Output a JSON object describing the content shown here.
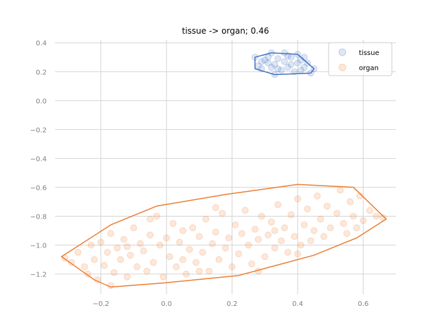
{
  "chart_data": {
    "type": "scatter",
    "title": "tissue -> organ; 0.46",
    "xlabel": "",
    "ylabel": "",
    "xlim": [
      -0.34,
      0.7
    ],
    "ylim": [
      -1.34,
      0.42
    ],
    "xticks": [
      -0.2,
      0.0,
      0.2,
      0.4,
      0.6
    ],
    "yticks": [
      0.4,
      0.2,
      0.0,
      -0.2,
      -0.4,
      -0.6,
      -0.8,
      -1.0,
      -1.2
    ],
    "xtick_labels": [
      "−0.2",
      "0.0",
      "0.2",
      "0.4",
      "0.6"
    ],
    "ytick_labels": [
      "0.4",
      "0.2",
      "0.0",
      "−0.2",
      "−0.4",
      "−0.6",
      "−0.8",
      "−1.0",
      "−1.2"
    ],
    "grid": true,
    "legend_position": "top-right",
    "series": [
      {
        "name": "tissue",
        "color": "#4472c4",
        "hull": [
          [
            0.27,
            0.3
          ],
          [
            0.32,
            0.33
          ],
          [
            0.4,
            0.32
          ],
          [
            0.45,
            0.22
          ],
          [
            0.44,
            0.19
          ],
          [
            0.33,
            0.18
          ],
          [
            0.27,
            0.22
          ]
        ],
        "points": [
          [
            0.27,
            0.3
          ],
          [
            0.28,
            0.24
          ],
          [
            0.29,
            0.22
          ],
          [
            0.3,
            0.28
          ],
          [
            0.31,
            0.26
          ],
          [
            0.32,
            0.33
          ],
          [
            0.32,
            0.23
          ],
          [
            0.33,
            0.18
          ],
          [
            0.33,
            0.25
          ],
          [
            0.34,
            0.29
          ],
          [
            0.35,
            0.21
          ],
          [
            0.36,
            0.27
          ],
          [
            0.36,
            0.33
          ],
          [
            0.37,
            0.23
          ],
          [
            0.38,
            0.3
          ],
          [
            0.38,
            0.25
          ],
          [
            0.39,
            0.2
          ],
          [
            0.4,
            0.26
          ],
          [
            0.4,
            0.32
          ],
          [
            0.41,
            0.28
          ],
          [
            0.42,
            0.23
          ],
          [
            0.42,
            0.3
          ],
          [
            0.43,
            0.26
          ],
          [
            0.44,
            0.19
          ],
          [
            0.45,
            0.22
          ],
          [
            0.31,
            0.3
          ],
          [
            0.34,
            0.22
          ],
          [
            0.37,
            0.31
          ],
          [
            0.41,
            0.21
          ],
          [
            0.29,
            0.27
          ]
        ]
      },
      {
        "name": "organ",
        "color": "#ed7d31",
        "hull": [
          [
            -0.32,
            -1.08
          ],
          [
            -0.22,
            -1.24
          ],
          [
            -0.17,
            -1.29
          ],
          [
            0.0,
            -1.26
          ],
          [
            0.22,
            -1.21
          ],
          [
            0.45,
            -1.07
          ],
          [
            0.58,
            -0.95
          ],
          [
            0.67,
            -0.82
          ],
          [
            0.57,
            -0.6
          ],
          [
            0.4,
            -0.58
          ],
          [
            0.18,
            -0.65
          ],
          [
            -0.03,
            -0.73
          ],
          [
            -0.17,
            -0.86
          ]
        ],
        "points": [
          [
            -0.31,
            -1.09
          ],
          [
            -0.29,
            -1.12
          ],
          [
            -0.27,
            -1.05
          ],
          [
            -0.25,
            -1.15
          ],
          [
            -0.24,
            -1.2
          ],
          [
            -0.23,
            -1.0
          ],
          [
            -0.22,
            -1.1
          ],
          [
            -0.21,
            -1.24
          ],
          [
            -0.2,
            -0.98
          ],
          [
            -0.19,
            -1.14
          ],
          [
            -0.18,
            -1.05
          ],
          [
            -0.17,
            -1.28
          ],
          [
            -0.17,
            -0.92
          ],
          [
            -0.16,
            -1.19
          ],
          [
            -0.15,
            -1.02
          ],
          [
            -0.14,
            -1.1
          ],
          [
            -0.13,
            -0.96
          ],
          [
            -0.12,
            -1.22
          ],
          [
            -0.11,
            -1.07
          ],
          [
            -0.1,
            -0.88
          ],
          [
            -0.09,
            -1.15
          ],
          [
            -0.08,
            -0.99
          ],
          [
            -0.07,
            -1.04
          ],
          [
            -0.06,
            -1.18
          ],
          [
            -0.05,
            -0.93
          ],
          [
            -0.04,
            -1.12
          ],
          [
            -0.03,
            -0.8
          ],
          [
            -0.02,
            -1.0
          ],
          [
            -0.01,
            -1.22
          ],
          [
            0.0,
            -0.95
          ],
          [
            0.01,
            -1.08
          ],
          [
            0.02,
            -0.85
          ],
          [
            0.03,
            -1.15
          ],
          [
            0.04,
            -0.98
          ],
          [
            0.05,
            -0.9
          ],
          [
            0.06,
            -1.2
          ],
          [
            0.07,
            -1.03
          ],
          [
            0.08,
            -0.88
          ],
          [
            0.09,
            -1.12
          ],
          [
            0.1,
            -0.94
          ],
          [
            0.11,
            -1.05
          ],
          [
            0.12,
            -0.82
          ],
          [
            0.13,
            -1.18
          ],
          [
            0.14,
            -0.99
          ],
          [
            0.15,
            -0.91
          ],
          [
            0.16,
            -1.1
          ],
          [
            0.17,
            -0.78
          ],
          [
            0.18,
            -1.02
          ],
          [
            0.19,
            -0.95
          ],
          [
            0.2,
            -1.15
          ],
          [
            0.21,
            -0.86
          ],
          [
            0.22,
            -1.06
          ],
          [
            0.23,
            -0.92
          ],
          [
            0.24,
            -0.76
          ],
          [
            0.25,
            -1.0
          ],
          [
            0.26,
            -1.13
          ],
          [
            0.27,
            -0.89
          ],
          [
            0.28,
            -0.96
          ],
          [
            0.29,
            -0.8
          ],
          [
            0.3,
            -1.08
          ],
          [
            0.31,
            -0.93
          ],
          [
            0.32,
            -0.84
          ],
          [
            0.33,
            -1.02
          ],
          [
            0.34,
            -0.72
          ],
          [
            0.35,
            -0.97
          ],
          [
            0.36,
            -0.88
          ],
          [
            0.37,
            -1.05
          ],
          [
            0.38,
            -0.79
          ],
          [
            0.39,
            -0.94
          ],
          [
            0.4,
            -0.68
          ],
          [
            0.41,
            -1.0
          ],
          [
            0.42,
            -0.86
          ],
          [
            0.43,
            -0.75
          ],
          [
            0.44,
            -0.97
          ],
          [
            0.45,
            -0.9
          ],
          [
            0.46,
            -0.66
          ],
          [
            0.47,
            -0.82
          ],
          [
            0.48,
            -0.94
          ],
          [
            0.49,
            -0.73
          ],
          [
            0.5,
            -0.88
          ],
          [
            0.52,
            -0.78
          ],
          [
            0.53,
            -0.62
          ],
          [
            0.54,
            -0.85
          ],
          [
            0.55,
            -0.92
          ],
          [
            0.56,
            -0.7
          ],
          [
            0.57,
            -0.8
          ],
          [
            0.58,
            -0.88
          ],
          [
            0.59,
            -0.66
          ],
          [
            0.6,
            -0.83
          ],
          [
            0.62,
            -0.76
          ],
          [
            0.64,
            -0.8
          ],
          [
            0.66,
            -0.81
          ],
          [
            -0.05,
            -0.82
          ],
          [
            0.1,
            -1.18
          ],
          [
            0.28,
            -1.18
          ],
          [
            0.4,
            -1.06
          ],
          [
            0.15,
            -0.74
          ],
          [
            -0.12,
            -1.01
          ],
          [
            0.33,
            -0.9
          ],
          [
            0.05,
            -1.1
          ]
        ]
      }
    ]
  }
}
